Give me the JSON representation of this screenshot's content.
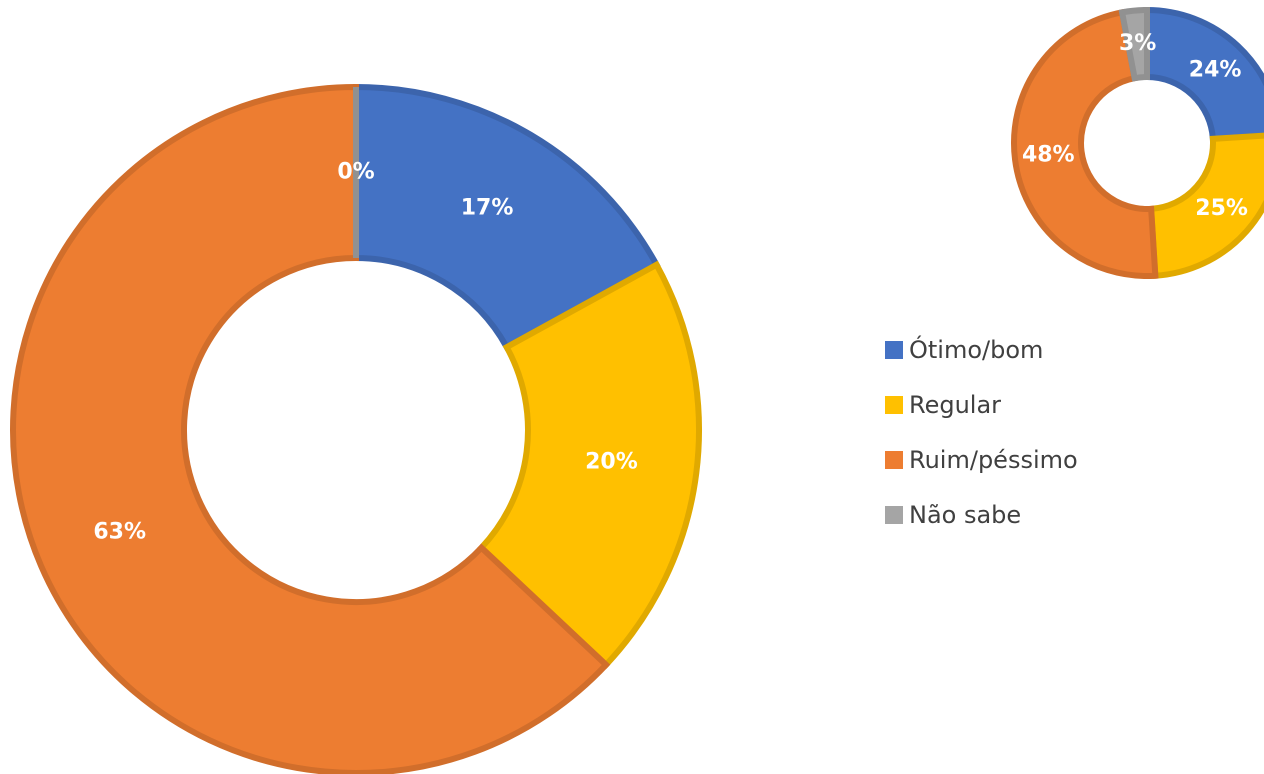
{
  "chart_data": [
    {
      "type": "donut",
      "categories": [
        "Ótimo/bom",
        "Regular",
        "Ruim/péssimo",
        "Não sabe"
      ],
      "values": [
        17,
        20,
        63,
        0
      ],
      "value_labels": [
        "17%",
        "20%",
        "63%",
        "0%"
      ],
      "colors": [
        "#4472c4",
        "#ffc000",
        "#ed7d31",
        "#a5a5a5"
      ]
    },
    {
      "type": "donut",
      "categories": [
        "Ótimo/bom",
        "Regular",
        "Ruim/péssimo",
        "Não sabe"
      ],
      "values": [
        24,
        25,
        48,
        3
      ],
      "value_labels": [
        "24%",
        "25%",
        "48%",
        "3%"
      ],
      "colors": [
        "#4472c4",
        "#ffc000",
        "#ed7d31",
        "#a5a5a5"
      ]
    }
  ]
}
